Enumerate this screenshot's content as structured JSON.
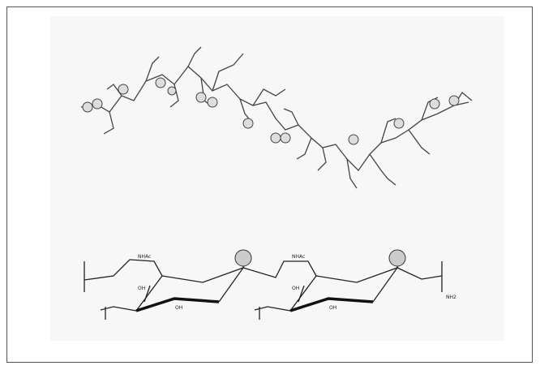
{
  "structure": {
    "labels": [
      "NHAc",
      "OH",
      "OH",
      "NHAc",
      "OH",
      "OH",
      "NH2"
    ]
  }
}
